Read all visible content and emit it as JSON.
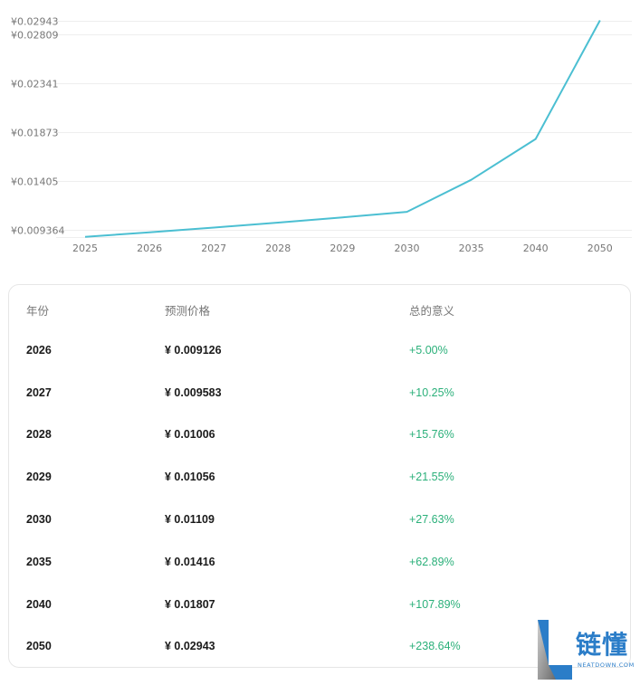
{
  "chart_data": {
    "type": "line",
    "title": "",
    "xlabel": "",
    "ylabel": "",
    "categories": [
      "2025",
      "2026",
      "2027",
      "2028",
      "2029",
      "2030",
      "2035",
      "2040",
      "2050"
    ],
    "series": [
      {
        "name": "预测价格",
        "color": "#4bbfd2",
        "values": [
          0.008692,
          0.009126,
          0.009583,
          0.01006,
          0.01056,
          0.01109,
          0.01416,
          0.01807,
          0.02943
        ]
      }
    ],
    "y_ticks": [
      "¥0.009364",
      "¥0.01405",
      "¥0.01873",
      "¥0.02341",
      "¥0.02809",
      "¥0.02943"
    ],
    "y_tick_values": [
      0.009364,
      0.01405,
      0.01873,
      0.02341,
      0.02809,
      0.02943
    ],
    "ylim": [
      0.0087,
      0.02943
    ],
    "grid": true,
    "legend": "none"
  },
  "table": {
    "headers": [
      "年份",
      "预测价格",
      "总的意义"
    ],
    "rows": [
      {
        "year": "2026",
        "price": "¥ 0.009126",
        "change": "+5.00%"
      },
      {
        "year": "2027",
        "price": "¥ 0.009583",
        "change": "+10.25%"
      },
      {
        "year": "2028",
        "price": "¥ 0.01006",
        "change": "+15.76%"
      },
      {
        "year": "2029",
        "price": "¥ 0.01056",
        "change": "+21.55%"
      },
      {
        "year": "2030",
        "price": "¥ 0.01109",
        "change": "+27.63%"
      },
      {
        "year": "2035",
        "price": "¥ 0.01416",
        "change": "+62.89%"
      },
      {
        "year": "2040",
        "price": "¥ 0.01807",
        "change": "+107.89%"
      },
      {
        "year": "2050",
        "price": "¥ 0.02943",
        "change": "+238.64%"
      }
    ]
  },
  "watermark": {
    "name": "链懂",
    "domain": "NEATDOWN.COM"
  },
  "colors": {
    "line": "#4bbfd2",
    "positive": "#2bb07a",
    "grid": "#eeeeee",
    "logo_blue": "#2b7dc8"
  }
}
